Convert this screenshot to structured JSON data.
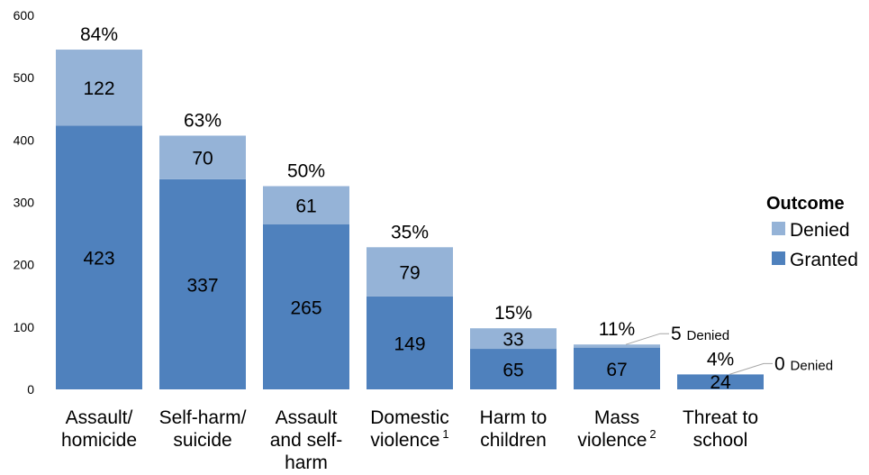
{
  "chart_data": {
    "type": "bar",
    "stacked": true,
    "title": "",
    "xlabel": "",
    "ylabel": "",
    "ylim": [
      0,
      600
    ],
    "yticks": [
      0,
      100,
      200,
      300,
      400,
      500,
      600
    ],
    "grid": false,
    "legend_position": "right",
    "categories": [
      {
        "lines": [
          "Assault/",
          "homicide"
        ],
        "sup": ""
      },
      {
        "lines": [
          "Self-harm/",
          "suicide"
        ],
        "sup": ""
      },
      {
        "lines": [
          "Assault",
          "and self-",
          "harm"
        ],
        "sup": ""
      },
      {
        "lines": [
          "Domestic",
          "violence"
        ],
        "sup": "1"
      },
      {
        "lines": [
          "Harm to",
          "children"
        ],
        "sup": ""
      },
      {
        "lines": [
          "Mass",
          "violence"
        ],
        "sup": "2"
      },
      {
        "lines": [
          "Threat to",
          "school"
        ],
        "sup": ""
      }
    ],
    "series": [
      {
        "name": "Granted",
        "color": "#4f81bd",
        "values": [
          423,
          337,
          265,
          149,
          65,
          67,
          24
        ]
      },
      {
        "name": "Denied",
        "color": "#95b3d7",
        "values": [
          122,
          70,
          61,
          79,
          33,
          5,
          0
        ]
      }
    ],
    "percent_labels": [
      "84%",
      "63%",
      "50%",
      "35%",
      "15%",
      "11%",
      "4%"
    ],
    "callouts": [
      {
        "category_index": 5,
        "value": "5",
        "text": "Denied"
      },
      {
        "category_index": 6,
        "value": "0",
        "text": "Denied"
      }
    ],
    "legend": {
      "title": "Outcome",
      "items": [
        {
          "label": "Denied",
          "color": "#95b3d7"
        },
        {
          "label": "Granted",
          "color": "#4f81bd"
        }
      ]
    }
  }
}
